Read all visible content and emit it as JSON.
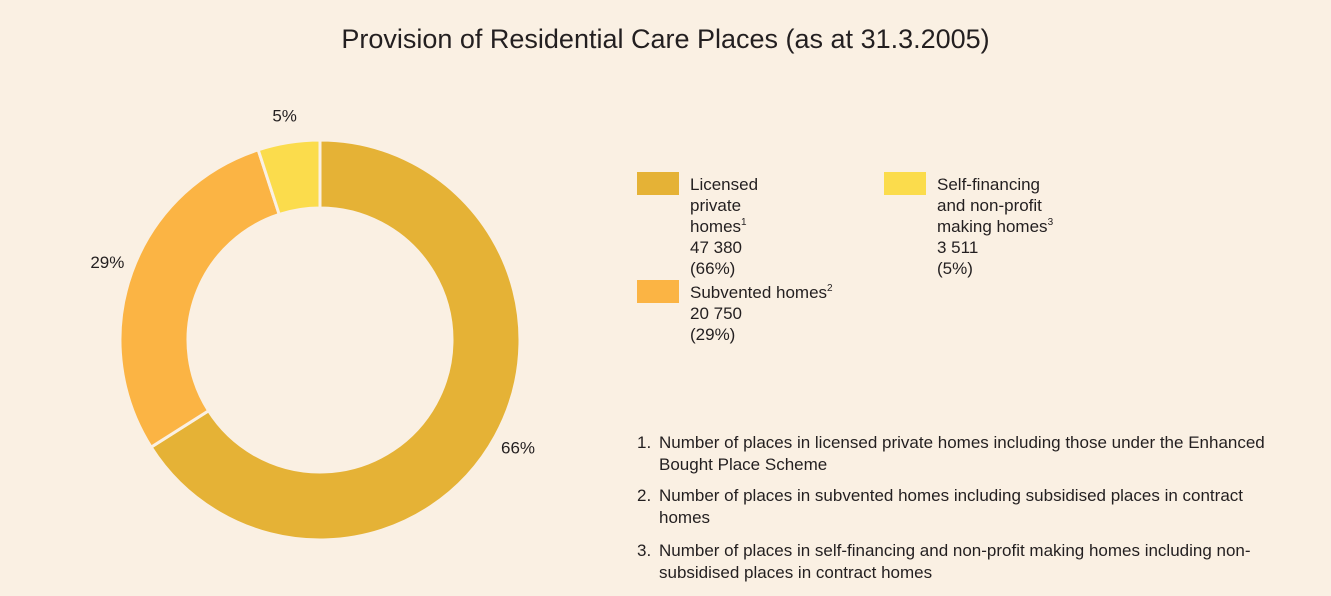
{
  "chart_data": {
    "type": "donut",
    "title": "Provision of Residential Care Places (as at 31.3.2005)",
    "categories": [
      "Licensed private homes",
      "Subvented homes",
      "Self-financing and non-profit making homes"
    ],
    "category_notes": [
      "1",
      "2",
      "3"
    ],
    "values": [
      66,
      29,
      5
    ],
    "value_labels": [
      "66%",
      "29%",
      "5%"
    ],
    "legend_value_labels": [
      "(66%)",
      "(29%)",
      "(5%)"
    ],
    "places": [
      47380,
      20750,
      3511
    ],
    "places_labels": [
      "47 380",
      "20 750",
      "3 511"
    ],
    "colors": [
      "#e5b236",
      "#fbb444",
      "#fbdc4c"
    ],
    "footnotes": [
      {
        "marker": "1.",
        "text": "Number of places in licensed private homes including those under the Enhanced Bought Place Scheme"
      },
      {
        "marker": "2.",
        "text": "Number of places in subvented homes including subsidised places in contract homes"
      },
      {
        "marker": "3.",
        "text": "Number of places in self-financing and non-profit making homes including non-subsidised places in contract homes"
      }
    ]
  }
}
